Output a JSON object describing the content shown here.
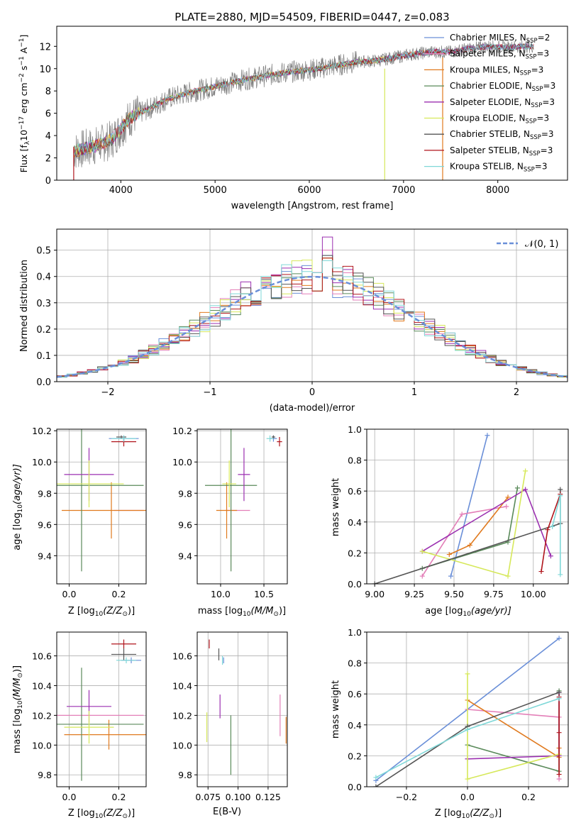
{
  "colors": {
    "series": [
      "#6a8fd8",
      "#e37fb8",
      "#e07a1f",
      "#5a8a5a",
      "#9b2fb0",
      "#d6e85a",
      "#555555",
      "#b0141b",
      "#7fd8d8"
    ],
    "spectrum": "#808080",
    "normal_line": "#6a8fd8"
  },
  "chart_data": [
    {
      "id": "spectrum",
      "type": "line",
      "title": "PLATE=2880, MJD=54509, FIBERID=0447, z=0.083",
      "xlabel": "wavelength [Angstrom, rest frame]",
      "ylabel": "Flux [f",
      "ylabel_rest": "10",
      "ylabel_unit": "erg cm",
      "ylabel_tail": "s",
      "ylabel_end": "A",
      "ylabel_sub": "λ",
      "ylabel_exp1": "−17",
      "ylabel_exp2": "−2",
      "ylabel_exp3": "−1",
      "ylabel_close": "]",
      "xlim": [
        3320,
        8740
      ],
      "ylim": [
        0,
        13.8
      ],
      "xticks": [
        4000,
        5000,
        6000,
        7000,
        8000
      ],
      "yticks": [
        0,
        2,
        4,
        6,
        8,
        10,
        12
      ],
      "x": [
        3500,
        3700,
        3900,
        4100,
        4300,
        4500,
        4700,
        4900,
        5100,
        5300,
        5500,
        5700,
        5900,
        6100,
        6300,
        6500,
        6700,
        6900,
        7100,
        7300,
        7500,
        7700,
        7900,
        8100,
        8300
      ],
      "y": [
        2.6,
        3.0,
        3.6,
        5.6,
        6.4,
        7.3,
        7.8,
        8.2,
        8.6,
        9.0,
        9.3,
        9.6,
        9.8,
        10.0,
        10.3,
        10.6,
        10.7,
        11.0,
        11.3,
        11.5,
        11.5,
        11.8,
        12.0,
        11.9,
        12.0
      ],
      "legend": [
        {
          "name": "Chabrier MILES, N",
          "sub": "SSP",
          "val": "=2"
        },
        {
          "name": "Salpeter MILES, N",
          "sub": "SSP",
          "val": "=3"
        },
        {
          "name": "Kroupa MILES, N",
          "sub": "SSP",
          "val": "=3"
        },
        {
          "name": "Chabrier ELODIE, N",
          "sub": "SSP",
          "val": "=3"
        },
        {
          "name": "Salpeter ELODIE, N",
          "sub": "SSP",
          "val": "=3"
        },
        {
          "name": "Kroupa ELODIE, N",
          "sub": "SSP",
          "val": "=3"
        },
        {
          "name": "Chabrier STELIB, N",
          "sub": "SSP",
          "val": "=3"
        },
        {
          "name": "Salpeter STELIB, N",
          "sub": "SSP",
          "val": "=3"
        },
        {
          "name": "Kroupa STELIB, N",
          "sub": "SSP",
          "val": "=3"
        }
      ],
      "legend_position": "upper-right"
    },
    {
      "id": "residuals",
      "type": "line",
      "xlabel": "(data-model)/error",
      "ylabel": "Normed distribution",
      "xlim": [
        -2.5,
        2.5
      ],
      "ylim": [
        0,
        0.58
      ],
      "xticks": [
        -2,
        -1,
        0,
        1,
        2
      ],
      "xticklabels": [
        "−2",
        "−1",
        "0",
        "1",
        "2"
      ],
      "yticks": [
        0.0,
        0.1,
        0.2,
        0.3,
        0.4,
        0.5
      ],
      "yticklabels": [
        "0.0",
        "0.1",
        "0.2",
        "0.3",
        "0.4",
        "0.5"
      ],
      "grid": true,
      "legend_label": "𝒩(0, 1)",
      "legend_position": "upper-right",
      "series_max": [
        0.48,
        0.5,
        0.47,
        0.46,
        0.55,
        0.47,
        0.48,
        0.47,
        0.46
      ]
    },
    {
      "id": "age-vs-Z",
      "type": "scatter",
      "xlabel": "Z [log",
      "xlabel_sub": "10",
      "xlabel_tail": "(Z/Z",
      "xlabel_sun": "⊙",
      "xlabel_close": ")]",
      "ylabel": "age  [log",
      "ylabel_sub": "10",
      "ylabel_tail": "(age/yr)]",
      "xlim": [
        -0.05,
        0.31
      ],
      "ylim": [
        9.22,
        10.21
      ],
      "xticks": [
        0.0,
        0.2
      ],
      "xticklabels": [
        "0.0",
        "0.2"
      ],
      "yticks": [
        9.4,
        9.6,
        9.8,
        10.0,
        10.2
      ],
      "yticklabels": [
        "9.4",
        "9.6",
        "9.8",
        "10.0",
        "10.2"
      ],
      "points": [
        {
          "x": 0.22,
          "y": 10.15,
          "xerr": 0.06,
          "yerr": 0.02
        },
        {
          "x": 0.24,
          "y": 9.69,
          "xerr": 0.06,
          "yerr": 0.0
        },
        {
          "x": 0.17,
          "y": 9.69,
          "xerr": 0.2,
          "yerr": 0.18
        },
        {
          "x": 0.05,
          "y": 9.85,
          "xerr": 0.25,
          "yerr": 0.55
        },
        {
          "x": 0.08,
          "y": 9.92,
          "xerr": 0.1,
          "yerr": 0.17
        },
        {
          "x": 0.08,
          "y": 9.86,
          "xerr": 0.14,
          "yerr": 0.15
        },
        {
          "x": 0.21,
          "y": 10.16,
          "xerr": 0.02,
          "yerr": 0.01
        },
        {
          "x": 0.22,
          "y": 10.13,
          "xerr": 0.05,
          "yerr": 0.03
        },
        {
          "x": 0.22,
          "y": 10.15,
          "xerr": 0.05,
          "yerr": 0.02
        }
      ]
    },
    {
      "id": "age-vs-mass",
      "type": "scatter",
      "xlabel": "mass [log",
      "xlabel_sub": "10",
      "xlabel_tail": "(M/M",
      "xlabel_sun": "⊙",
      "xlabel_close": ")]",
      "xlim": [
        9.73,
        10.77
      ],
      "ylim": [
        9.22,
        10.21
      ],
      "xticks": [
        10.0,
        10.5
      ],
      "xticklabels": [
        "10.0",
        "10.5"
      ],
      "yticks": [
        9.4,
        9.6,
        9.8,
        10.0,
        10.2
      ],
      "yticklabels": [
        "9.4",
        "9.6",
        "9.8",
        "10.0",
        "10.2"
      ],
      "points": [
        {
          "x": 10.61,
          "y": 10.15,
          "xerr": 0.04,
          "yerr": 0.02
        },
        {
          "x": 10.2,
          "y": 9.69,
          "xerr": 0.14,
          "yerr": 0.0
        },
        {
          "x": 10.07,
          "y": 9.69,
          "xerr": 0.12,
          "yerr": 0.18
        },
        {
          "x": 10.12,
          "y": 9.85,
          "xerr": 0.3,
          "yerr": 0.55
        },
        {
          "x": 10.27,
          "y": 9.92,
          "xerr": 0.07,
          "yerr": 0.17
        },
        {
          "x": 10.1,
          "y": 9.86,
          "xerr": 0.08,
          "yerr": 0.15
        },
        {
          "x": 10.61,
          "y": 10.16,
          "xerr": 0.02,
          "yerr": 0.01
        },
        {
          "x": 10.68,
          "y": 10.13,
          "xerr": 0.03,
          "yerr": 0.03
        },
        {
          "x": 10.57,
          "y": 10.15,
          "xerr": 0.04,
          "yerr": 0.02
        }
      ]
    },
    {
      "id": "weight-vs-age",
      "type": "line",
      "xlabel": "age  [log",
      "xlabel_sub": "10",
      "xlabel_tail": "(age/yr)]",
      "ylabel": "mass weight",
      "xlim": [
        8.95,
        10.22
      ],
      "ylim": [
        0,
        1.0
      ],
      "xticks": [
        9.0,
        9.25,
        9.5,
        9.75,
        10.0
      ],
      "xticklabels": [
        "9.00",
        "9.25",
        "9.50",
        "9.75",
        "10.00"
      ],
      "yticks": [
        0.0,
        0.2,
        0.4,
        0.6,
        0.8,
        1.0
      ],
      "yticklabels": [
        "0.0",
        "0.2",
        "0.4",
        "0.6",
        "0.8",
        "1.0"
      ],
      "series": [
        {
          "x": [
            9.48,
            9.71
          ],
          "y": [
            0.05,
            0.96
          ]
        },
        {
          "x": [
            9.3,
            9.55,
            9.83
          ],
          "y": [
            0.05,
            0.45,
            0.5
          ]
        },
        {
          "x": [
            9.47,
            9.6,
            9.84
          ],
          "y": [
            0.19,
            0.25,
            0.56
          ]
        },
        {
          "x": [
            9.3,
            9.84,
            9.9
          ],
          "y": [
            0.1,
            0.27,
            0.62
          ]
        },
        {
          "x": [
            9.3,
            9.95,
            10.11
          ],
          "y": [
            0.21,
            0.61,
            0.18
          ]
        },
        {
          "x": [
            9.3,
            9.84,
            9.95
          ],
          "y": [
            0.21,
            0.05,
            0.73
          ]
        },
        {
          "x": [
            9.0,
            10.17,
            10.17
          ],
          "y": [
            0.0,
            0.39,
            0.61
          ]
        },
        {
          "x": [
            10.05,
            10.09,
            10.17
          ],
          "y": [
            0.08,
            0.35,
            0.58
          ]
        },
        {
          "x": [
            10.17,
            10.17,
            10.12
          ],
          "y": [
            0.06,
            0.57,
            0.37
          ]
        }
      ]
    },
    {
      "id": "mass-vs-Z",
      "type": "scatter",
      "xlabel": "Z [log",
      "xlabel_sub": "10",
      "xlabel_tail": "(Z/Z",
      "xlabel_sun": "⊙",
      "xlabel_close": ")]",
      "ylabel": "mass [log",
      "ylabel_sub": "10",
      "ylabel_tail": "(M/M",
      "ylabel_sun": "⊙",
      "ylabel_close": ")]",
      "xlim": [
        -0.05,
        0.31
      ],
      "ylim": [
        9.72,
        10.76
      ],
      "xticks": [
        0.0,
        0.2
      ],
      "xticklabels": [
        "0.0",
        "0.2"
      ],
      "yticks": [
        9.8,
        10.0,
        10.2,
        10.4,
        10.6
      ],
      "yticklabels": [
        "9.8",
        "10.0",
        "10.2",
        "10.4",
        "10.6"
      ],
      "points": [
        {
          "x": 0.25,
          "y": 10.57,
          "xerr": 0.04,
          "yerr": 0.02
        },
        {
          "x": 0.11,
          "y": 10.2,
          "xerr": 0.19,
          "yerr": 0.0
        },
        {
          "x": 0.16,
          "y": 10.07,
          "xerr": 0.18,
          "yerr": 0.1
        },
        {
          "x": 0.05,
          "y": 10.14,
          "xerr": 0.25,
          "yerr": 0.38
        },
        {
          "x": 0.08,
          "y": 10.26,
          "xerr": 0.09,
          "yerr": 0.11
        },
        {
          "x": 0.08,
          "y": 10.12,
          "xerr": 0.1,
          "yerr": 0.11
        },
        {
          "x": 0.22,
          "y": 10.61,
          "xerr": 0.05,
          "yerr": 0.04
        },
        {
          "x": 0.22,
          "y": 10.68,
          "xerr": 0.05,
          "yerr": 0.03
        },
        {
          "x": 0.23,
          "y": 10.57,
          "xerr": 0.04,
          "yerr": 0.02
        }
      ]
    },
    {
      "id": "mass-vs-EBV",
      "type": "scatter",
      "xlabel": "E(B-V)",
      "xlim": [
        0.066,
        0.141
      ],
      "ylim": [
        9.72,
        10.76
      ],
      "xticks": [
        0.075,
        0.1,
        0.125
      ],
      "xticklabels": [
        "0.075",
        "0.100",
        "0.125"
      ],
      "yticks": [
        9.8,
        10.0,
        10.2,
        10.4,
        10.6
      ],
      "yticklabels": [
        "9.8",
        "10.0",
        "10.2",
        "10.4",
        "10.6"
      ],
      "points": [
        {
          "x": 0.088,
          "y": 10.57,
          "xerr": 0.0,
          "yerr": 0.02
        },
        {
          "x": 0.135,
          "y": 10.2,
          "xerr": 0.0,
          "yerr": 0.14
        },
        {
          "x": 0.14,
          "y": 10.1,
          "xerr": 0.0,
          "yerr": 0.09
        },
        {
          "x": 0.094,
          "y": 10.0,
          "xerr": 0.0,
          "yerr": 0.2
        },
        {
          "x": 0.085,
          "y": 10.26,
          "xerr": 0.0,
          "yerr": 0.08
        },
        {
          "x": 0.074,
          "y": 10.12,
          "xerr": 0.0,
          "yerr": 0.1
        },
        {
          "x": 0.084,
          "y": 10.61,
          "xerr": 0.0,
          "yerr": 0.04
        },
        {
          "x": 0.076,
          "y": 10.68,
          "xerr": 0.0,
          "yerr": 0.03
        },
        {
          "x": 0.087,
          "y": 10.57,
          "xerr": 0.0,
          "yerr": 0.03
        }
      ]
    },
    {
      "id": "weight-vs-Z",
      "type": "line",
      "xlabel": "Z [log",
      "xlabel_sub": "10",
      "xlabel_tail": "(Z/Z",
      "xlabel_sun": "⊙",
      "xlabel_close": ")]",
      "ylabel": "mass weight",
      "xlim": [
        -0.33,
        0.33
      ],
      "ylim": [
        0,
        1.0
      ],
      "xticks": [
        -0.2,
        0.0,
        0.2
      ],
      "xticklabels": [
        "−0.2",
        "0.0",
        "0.2"
      ],
      "yticks": [
        0.0,
        0.2,
        0.4,
        0.6,
        0.8,
        1.0
      ],
      "yticklabels": [
        "0.0",
        "0.2",
        "0.4",
        "0.6",
        "0.8",
        "1.0"
      ],
      "series": [
        {
          "x": [
            -0.3,
            0.3
          ],
          "y": [
            0.04,
            0.96
          ]
        },
        {
          "x": [
            0.0,
            0.3,
            0.3
          ],
          "y": [
            0.5,
            0.45,
            0.05
          ]
        },
        {
          "x": [
            0.0,
            0.3,
            0.3
          ],
          "y": [
            0.56,
            0.19,
            0.25
          ]
        },
        {
          "x": [
            0.0,
            0.3,
            0.3
          ],
          "y": [
            0.27,
            0.1,
            0.62
          ]
        },
        {
          "x": [
            0.0,
            0.3,
            0.3
          ],
          "y": [
            0.18,
            0.2,
            0.61
          ]
        },
        {
          "x": [
            0.0,
            0.0,
            0.3
          ],
          "y": [
            0.73,
            0.05,
            0.21
          ]
        },
        {
          "x": [
            -0.3,
            0.0,
            0.3
          ],
          "y": [
            0.0,
            0.39,
            0.61
          ]
        },
        {
          "x": [
            0.3,
            0.3,
            0.3
          ],
          "y": [
            0.08,
            0.35,
            0.58
          ]
        },
        {
          "x": [
            -0.3,
            0.0,
            0.3
          ],
          "y": [
            0.06,
            0.37,
            0.57
          ]
        }
      ]
    }
  ]
}
